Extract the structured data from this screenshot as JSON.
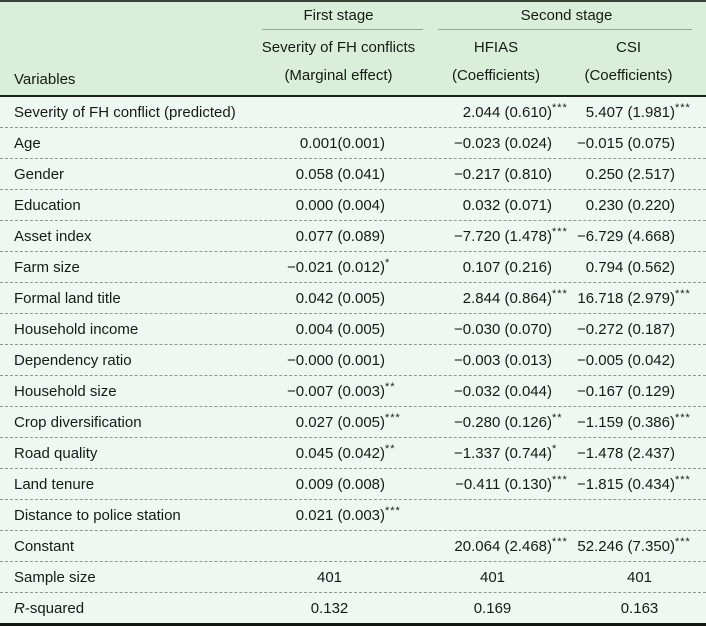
{
  "table": {
    "header": {
      "variables_label": "Variables",
      "first_stage_label": "First stage",
      "second_stage_label": "Second stage",
      "col1_name": "Severity of FH conflicts",
      "col1_sub": "(Marginal effect)",
      "col2_name": "HFIAS",
      "col2_sub": "(Coefficients)",
      "col3_name": "CSI",
      "col3_sub": "(Coefficients)"
    },
    "rows": [
      {
        "type": "coef",
        "label": "Severity of FH conflict (predicted)",
        "c1": "",
        "c1s": "",
        "c2": "2.044 (0.610)",
        "c2s": "***",
        "c3": "5.407 (1.981)",
        "c3s": "***"
      },
      {
        "type": "coef",
        "label": "Age",
        "c1": "0.001(0.001)",
        "c1s": "",
        "c2": "−0.023 (0.024)",
        "c2s": "",
        "c3": "−0.015 (0.075)",
        "c3s": ""
      },
      {
        "type": "coef",
        "label": "Gender",
        "c1": "0.058 (0.041)",
        "c1s": "",
        "c2": "−0.217 (0.810)",
        "c2s": "",
        "c3": "0.250 (2.517)",
        "c3s": ""
      },
      {
        "type": "coef",
        "label": "Education",
        "c1": "0.000 (0.004)",
        "c1s": "",
        "c2": "0.032 (0.071)",
        "c2s": "",
        "c3": "0.230 (0.220)",
        "c3s": ""
      },
      {
        "type": "coef",
        "label": "Asset index",
        "c1": "0.077 (0.089)",
        "c1s": "",
        "c2": "−7.720 (1.478)",
        "c2s": "***",
        "c3": "−6.729 (4.668)",
        "c3s": ""
      },
      {
        "type": "coef",
        "label": "Farm size",
        "c1": "−0.021 (0.012)",
        "c1s": "*",
        "c2": "0.107 (0.216)",
        "c2s": "",
        "c3": "0.794 (0.562)",
        "c3s": ""
      },
      {
        "type": "coef",
        "label": "Formal land title",
        "c1": "0.042 (0.005)",
        "c1s": "",
        "c2": "2.844 (0.864)",
        "c2s": "***",
        "c3": "16.718 (2.979)",
        "c3s": "***"
      },
      {
        "type": "coef",
        "label": "Household income",
        "c1": "0.004 (0.005)",
        "c1s": "",
        "c2": "−0.030 (0.070)",
        "c2s": "",
        "c3": "−0.272 (0.187)",
        "c3s": ""
      },
      {
        "type": "coef",
        "label": "Dependency ratio",
        "c1": "−0.000 (0.001)",
        "c1s": "",
        "c2": "−0.003 (0.013)",
        "c2s": "",
        "c3": "−0.005 (0.042)",
        "c3s": ""
      },
      {
        "type": "coef",
        "label": "Household size",
        "c1": "−0.007 (0.003)",
        "c1s": "**",
        "c2": "−0.032 (0.044)",
        "c2s": "",
        "c3": "−0.167 (0.129)",
        "c3s": ""
      },
      {
        "type": "coef",
        "label": "Crop diversification",
        "c1": "0.027 (0.005)",
        "c1s": "***",
        "c2": "−0.280 (0.126)",
        "c2s": "**",
        "c3": "−1.159 (0.386)",
        "c3s": "***"
      },
      {
        "type": "coef",
        "label": "Road quality",
        "c1": "0.045 (0.042)",
        "c1s": "**",
        "c2": "−1.337 (0.744)",
        "c2s": "*",
        "c3": "−1.478 (2.437)",
        "c3s": ""
      },
      {
        "type": "coef",
        "label": "Land tenure",
        "c1": "0.009 (0.008)",
        "c1s": "",
        "c2": "−0.411 (0.130)",
        "c2s": "***",
        "c3": "−1.815 (0.434)",
        "c3s": "***"
      },
      {
        "type": "coef",
        "label": "Distance to police station",
        "c1": "0.021 (0.003)",
        "c1s": "***",
        "c2": "",
        "c2s": "",
        "c3": "",
        "c3s": ""
      },
      {
        "type": "coef",
        "label": "Constant",
        "c1": "",
        "c1s": "",
        "c2": "20.064 (2.468)",
        "c2s": "***",
        "c3": "52.246 (7.350)",
        "c3s": "***"
      },
      {
        "type": "summary",
        "label": "Sample size",
        "c1": "401",
        "c1s": "",
        "c2": "401",
        "c2s": "",
        "c3": "401",
        "c3s": ""
      },
      {
        "type": "summary",
        "label_prefix": "R",
        "label": "-squared",
        "c1": "0.132",
        "c1s": "",
        "c2": "0.169",
        "c2s": "",
        "c3": "0.163",
        "c3s": ""
      }
    ]
  }
}
